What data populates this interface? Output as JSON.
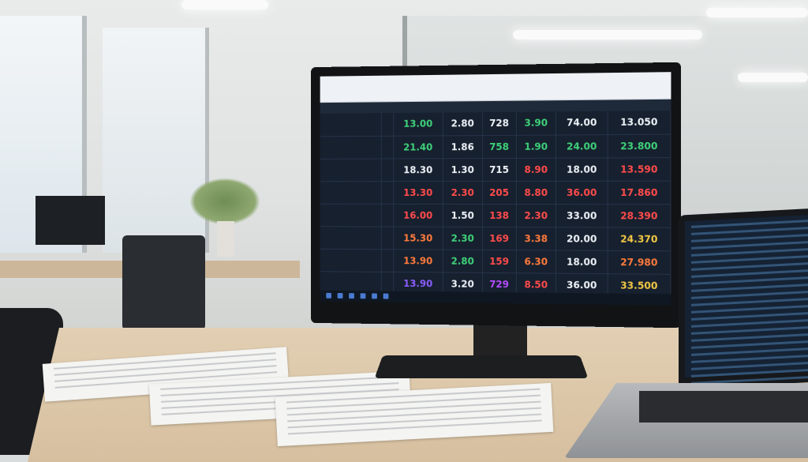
{
  "scene": "office desk with monitor showing a spreadsheet",
  "monitor": {
    "brand": "",
    "columns": [
      "",
      "",
      "",
      "",
      "",
      "",
      "",
      ""
    ],
    "rows": [
      {
        "values": [
          "13.00",
          "2.80",
          "728",
          "3.90",
          "74.00",
          "13.050"
        ],
        "colors": [
          "#3fd17a",
          "#eef2f8",
          "#eef2f8",
          "#3fd17a",
          "#eef2f8",
          "#eef2f8"
        ]
      },
      {
        "values": [
          "21.40",
          "1.86",
          "758",
          "1.90",
          "24.00",
          "23.800"
        ],
        "colors": [
          "#3fd17a",
          "#eef2f8",
          "#3fd17a",
          "#3fd17a",
          "#3fd17a",
          "#3fd17a"
        ]
      },
      {
        "values": [
          "18.30",
          "1.30",
          "715",
          "8.90",
          "18.00",
          "13.590"
        ],
        "colors": [
          "#eef2f8",
          "#eef2f8",
          "#eef2f8",
          "#ff4b4b",
          "#eef2f8",
          "#ff4b4b"
        ]
      },
      {
        "values": [
          "13.30",
          "2.30",
          "205",
          "8.80",
          "36.00",
          "17.860"
        ],
        "colors": [
          "#ff4b4b",
          "#ff4b4b",
          "#ff4b4b",
          "#ff4b4b",
          "#ff4b4b",
          "#ff4b4b"
        ]
      },
      {
        "values": [
          "16.00",
          "1.50",
          "138",
          "2.30",
          "33.00",
          "28.390"
        ],
        "colors": [
          "#ff4b4b",
          "#eef2f8",
          "#ff4b4b",
          "#ff4b4b",
          "#eef2f8",
          "#ff4b4b"
        ]
      },
      {
        "values": [
          "15.30",
          "2.30",
          "169",
          "3.38",
          "20.00",
          "24.370"
        ],
        "colors": [
          "#ff7a3c",
          "#3fd17a",
          "#ff4b4b",
          "#ff7a3c",
          "#eef2f8",
          "#f2c744"
        ]
      },
      {
        "values": [
          "13.90",
          "2.80",
          "159",
          "6.30",
          "18.00",
          "27.980"
        ],
        "colors": [
          "#ff7a3c",
          "#3fd17a",
          "#ff4b4b",
          "#ff7a3c",
          "#eef2f8",
          "#ff7a3c"
        ]
      },
      {
        "values": [
          "13.90",
          "3.20",
          "729",
          "8.50",
          "36.00",
          "33.500"
        ],
        "colors": [
          "#8a5cff",
          "#eef2f8",
          "#b44dff",
          "#ff4b4b",
          "#eef2f8",
          "#f2c744"
        ]
      }
    ]
  }
}
